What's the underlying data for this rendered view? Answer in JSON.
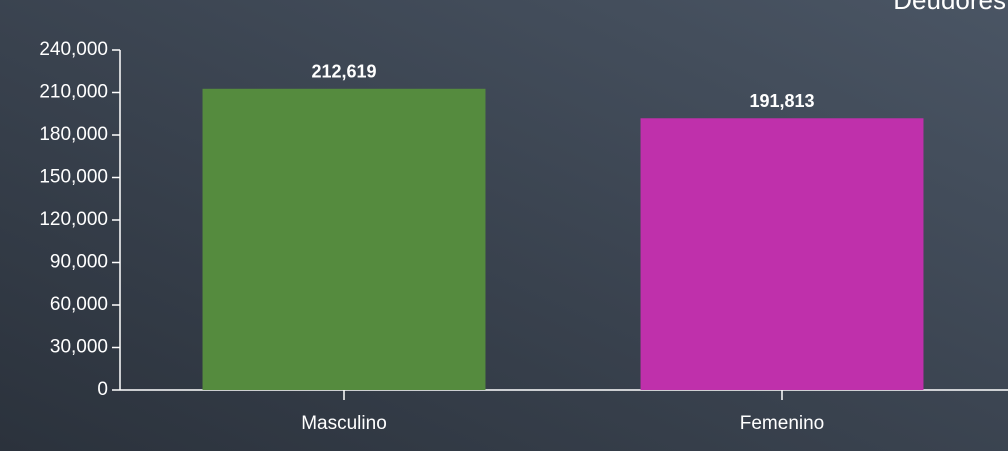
{
  "chart_data": {
    "type": "bar",
    "title": "Deudores",
    "categories": [
      "Masculino",
      "Femenino"
    ],
    "values": [
      212619,
      191813
    ],
    "value_labels": [
      "212,619",
      "191,813"
    ],
    "colors": [
      "#558b3e",
      "#bf30ab"
    ],
    "ylim": [
      0,
      240000
    ],
    "yticks": [
      0,
      {
        "value": 30000,
        "label": "30,000"
      },
      {
        "value": 60000,
        "label": "60,000"
      },
      {
        "value": 90000,
        "label": "90,000"
      },
      {
        "value": 120000,
        "label": "120,000"
      },
      {
        "value": 150000,
        "label": "150,000"
      },
      {
        "value": 180000,
        "label": "180,000"
      },
      {
        "value": 210000,
        "label": "210,000"
      },
      {
        "value": 240000,
        "label": "240,000"
      }
    ],
    "grid": false
  }
}
